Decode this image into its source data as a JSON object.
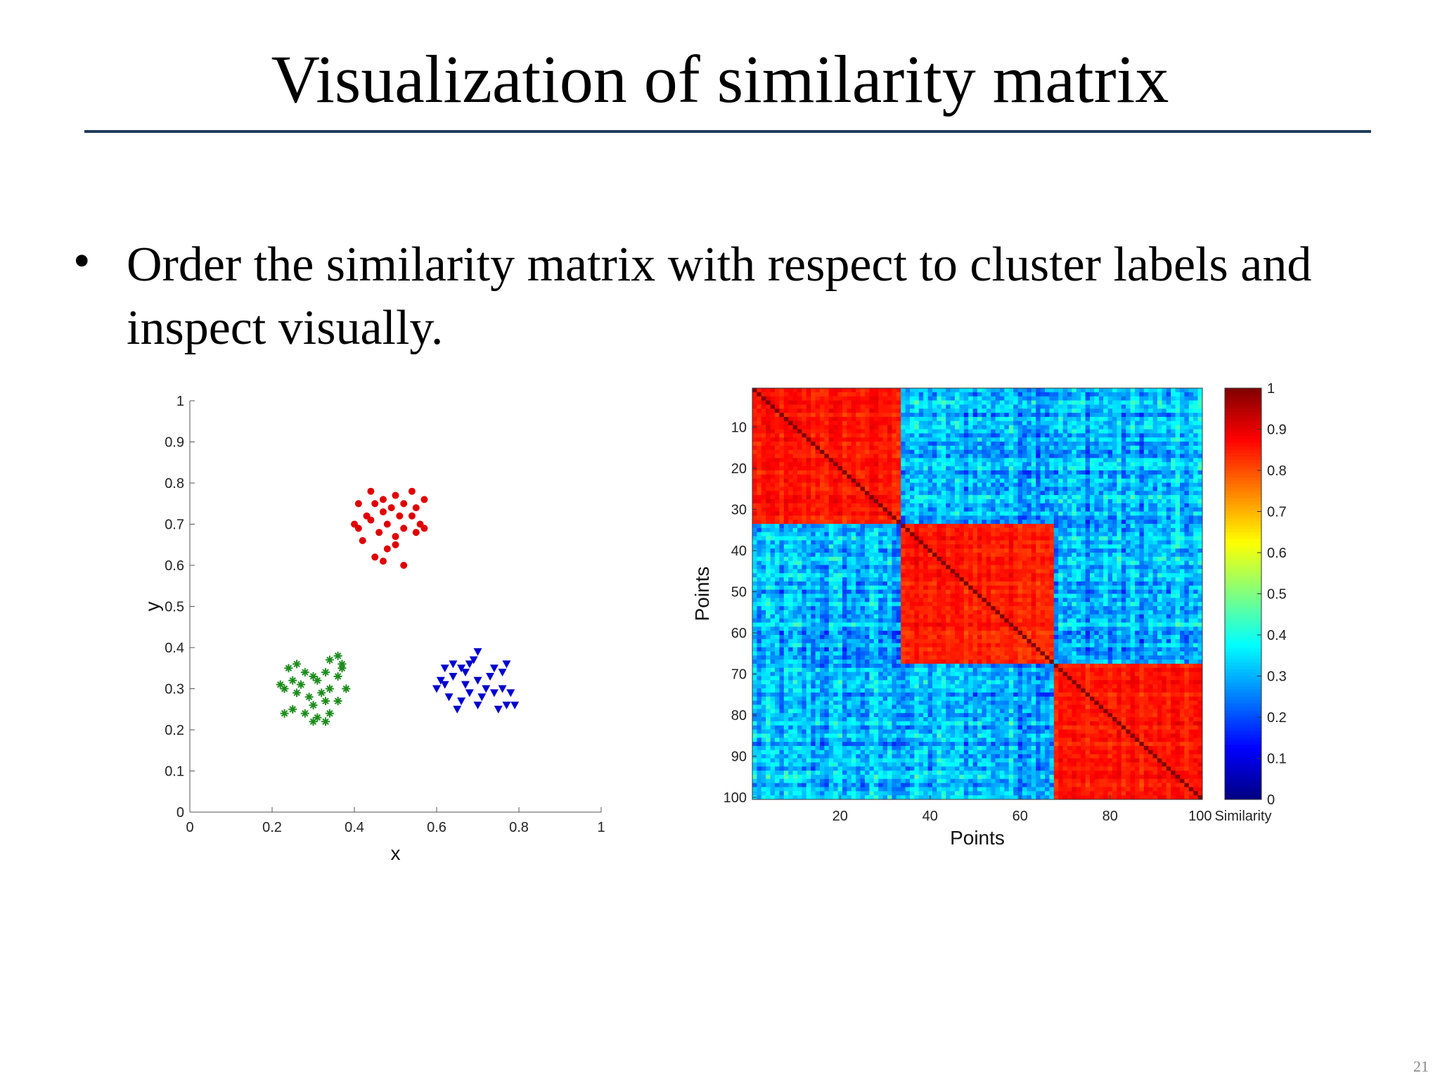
{
  "slide": {
    "title": "Visualization of similarity matrix",
    "bullet": "Order the similarity matrix with respect to cluster labels and inspect visually.",
    "page_number": "21"
  },
  "chart_data": [
    {
      "type": "scatter",
      "xlabel": "x",
      "ylabel": "y",
      "xlim": [
        0,
        1
      ],
      "ylim": [
        0,
        1
      ],
      "x_ticks": [
        0,
        0.2,
        0.4,
        0.6,
        0.8,
        1
      ],
      "x_tick_labels": [
        "0",
        "0.2",
        "0.4",
        "0.6",
        "0.8",
        "1"
      ],
      "y_ticks": [
        0,
        0.1,
        0.2,
        0.3,
        0.4,
        0.5,
        0.6,
        0.7,
        0.8,
        0.9,
        1
      ],
      "y_tick_labels": [
        "0",
        "0.1",
        "0.2",
        "0.3",
        "0.4",
        "0.5",
        "0.6",
        "0.7",
        "0.8",
        "0.9",
        "1"
      ],
      "grid": false,
      "series": [
        {
          "color": "#e00000",
          "marker": "circle",
          "points": [
            [
              0.44,
              0.78
            ],
            [
              0.47,
              0.76
            ],
            [
              0.5,
              0.77
            ],
            [
              0.54,
              0.78
            ],
            [
              0.57,
              0.76
            ],
            [
              0.41,
              0.75
            ],
            [
              0.45,
              0.75
            ],
            [
              0.49,
              0.74
            ],
            [
              0.52,
              0.75
            ],
            [
              0.55,
              0.74
            ],
            [
              0.43,
              0.72
            ],
            [
              0.47,
              0.73
            ],
            [
              0.51,
              0.72
            ],
            [
              0.54,
              0.72
            ],
            [
              0.4,
              0.7
            ],
            [
              0.44,
              0.71
            ],
            [
              0.48,
              0.7
            ],
            [
              0.52,
              0.69
            ],
            [
              0.56,
              0.7
            ],
            [
              0.42,
              0.66
            ],
            [
              0.46,
              0.68
            ],
            [
              0.5,
              0.67
            ],
            [
              0.55,
              0.68
            ],
            [
              0.48,
              0.64
            ],
            [
              0.5,
              0.65
            ],
            [
              0.45,
              0.62
            ],
            [
              0.47,
              0.61
            ],
            [
              0.52,
              0.6
            ],
            [
              0.57,
              0.69
            ],
            [
              0.41,
              0.69
            ]
          ]
        },
        {
          "color": "#1c8c1c",
          "marker": "star",
          "points": [
            [
              0.24,
              0.35
            ],
            [
              0.28,
              0.34
            ],
            [
              0.3,
              0.33
            ],
            [
              0.34,
              0.37
            ],
            [
              0.36,
              0.38
            ],
            [
              0.37,
              0.36
            ],
            [
              0.22,
              0.31
            ],
            [
              0.25,
              0.32
            ],
            [
              0.27,
              0.31
            ],
            [
              0.31,
              0.32
            ],
            [
              0.33,
              0.34
            ],
            [
              0.37,
              0.35
            ],
            [
              0.38,
              0.3
            ],
            [
              0.34,
              0.3
            ],
            [
              0.32,
              0.29
            ],
            [
              0.29,
              0.28
            ],
            [
              0.26,
              0.29
            ],
            [
              0.23,
              0.3
            ],
            [
              0.3,
              0.26
            ],
            [
              0.33,
              0.27
            ],
            [
              0.36,
              0.27
            ],
            [
              0.28,
              0.24
            ],
            [
              0.31,
              0.23
            ],
            [
              0.33,
              0.22
            ],
            [
              0.3,
              0.22
            ],
            [
              0.23,
              0.24
            ],
            [
              0.25,
              0.25
            ],
            [
              0.34,
              0.24
            ],
            [
              0.36,
              0.33
            ],
            [
              0.26,
              0.36
            ]
          ]
        },
        {
          "color": "#0000d0",
          "marker": "triangle-down",
          "points": [
            [
              0.62,
              0.35
            ],
            [
              0.64,
              0.36
            ],
            [
              0.66,
              0.35
            ],
            [
              0.68,
              0.36
            ],
            [
              0.7,
              0.39
            ],
            [
              0.69,
              0.37
            ],
            [
              0.74,
              0.35
            ],
            [
              0.77,
              0.36
            ],
            [
              0.76,
              0.34
            ],
            [
              0.61,
              0.32
            ],
            [
              0.64,
              0.33
            ],
            [
              0.67,
              0.31
            ],
            [
              0.7,
              0.32
            ],
            [
              0.73,
              0.33
            ],
            [
              0.76,
              0.3
            ],
            [
              0.78,
              0.29
            ],
            [
              0.6,
              0.3
            ],
            [
              0.63,
              0.28
            ],
            [
              0.66,
              0.27
            ],
            [
              0.68,
              0.29
            ],
            [
              0.71,
              0.28
            ],
            [
              0.74,
              0.29
            ],
            [
              0.77,
              0.26
            ],
            [
              0.79,
              0.26
            ],
            [
              0.65,
              0.25
            ],
            [
              0.7,
              0.26
            ],
            [
              0.75,
              0.25
            ],
            [
              0.72,
              0.3
            ],
            [
              0.62,
              0.31
            ],
            [
              0.67,
              0.34
            ]
          ]
        }
      ]
    },
    {
      "type": "heatmap",
      "xlabel": "Points",
      "ylabel": "Points",
      "size": 100,
      "x_ticks": [
        20,
        40,
        60,
        80,
        100
      ],
      "y_ticks": [
        10,
        20,
        30,
        40,
        50,
        60,
        70,
        80,
        90,
        100
      ],
      "clusters": [
        {
          "start": 1,
          "end": 33
        },
        {
          "start": 34,
          "end": 67
        },
        {
          "start": 68,
          "end": 100
        }
      ],
      "within_cluster_similarity": [
        0.78,
        0.92
      ],
      "between_cluster_similarity": [
        0.12,
        0.48
      ],
      "diagonal_similarity": 1,
      "colormap": "jet",
      "colorbar": {
        "label": "Similarity",
        "ticks": [
          0,
          0.1,
          0.2,
          0.3,
          0.4,
          0.5,
          0.6,
          0.7,
          0.8,
          0.9,
          1
        ],
        "tick_labels": [
          "0",
          "0.1",
          "0.2",
          "0.3",
          "0.4",
          "0.5",
          "0.6",
          "0.7",
          "0.8",
          "0.9",
          "1"
        ],
        "range": [
          0,
          1
        ]
      }
    }
  ]
}
